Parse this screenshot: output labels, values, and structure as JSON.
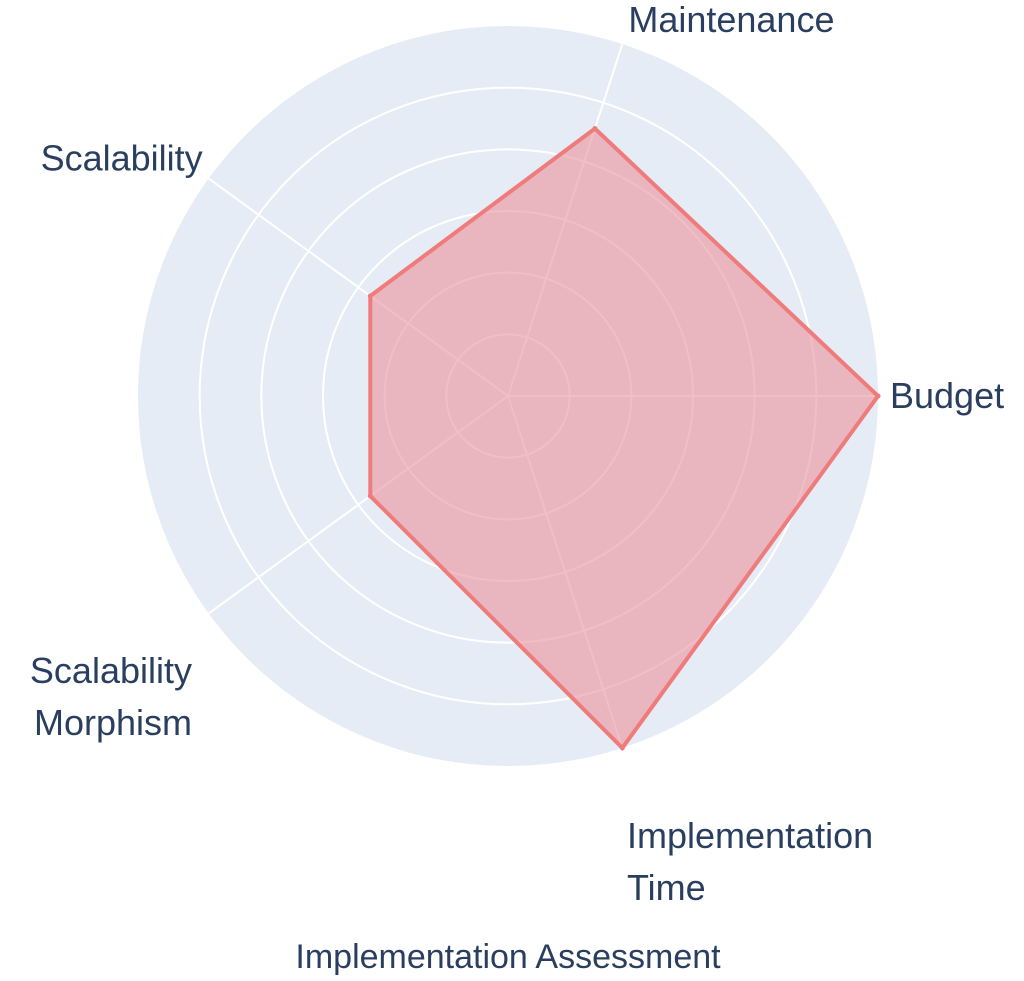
{
  "chart_data": {
    "type": "radar",
    "title": "Implementation Assessment",
    "categories": [
      "Budget",
      "Maintenance",
      "Scalability",
      "Scalability Morphism",
      "Implementation Time"
    ],
    "series": [
      {
        "values": [
          10,
          7.6,
          4.6,
          4.6,
          10
        ]
      }
    ],
    "rlim": [
      0,
      10
    ],
    "radial_gridlines": [
      1.6667,
      3.3333,
      5,
      6.6667,
      8.3333
    ],
    "grid": true,
    "legend": "none",
    "colors": {
      "background": "#e5ecf6",
      "grid": "#ffffff",
      "trace_line": "#ef7b7b",
      "trace_fill": "#eb9aa3",
      "text": "#2a3f5f"
    }
  }
}
